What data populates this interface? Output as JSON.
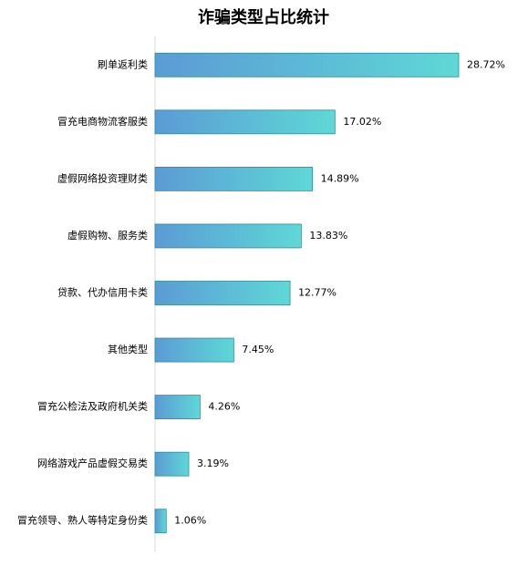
{
  "chart_data": {
    "type": "hbar",
    "title": "诈骗类型占比统计",
    "categories": [
      "刷单返利类",
      "冒充电商物流客服类",
      "虚假网络投资理财类",
      "虚假购物、服务类",
      "贷款、代办信用卡类",
      "其他类型",
      "冒充公检法及政府机关类",
      "网络游戏产品虚假交易类",
      "冒充领导、熟人等特定身份类"
    ],
    "values": [
      28.72,
      17.02,
      14.89,
      13.83,
      12.77,
      7.45,
      4.26,
      3.19,
      1.06
    ],
    "value_labels": [
      "28.72%",
      "17.02%",
      "14.89%",
      "13.83%",
      "12.77%",
      "7.45%",
      "4.26%",
      "3.19%",
      "1.06%"
    ],
    "gradient": [
      "#5b9bd5",
      "#5ed8d6"
    ],
    "border_color": "#2e8b9a"
  }
}
